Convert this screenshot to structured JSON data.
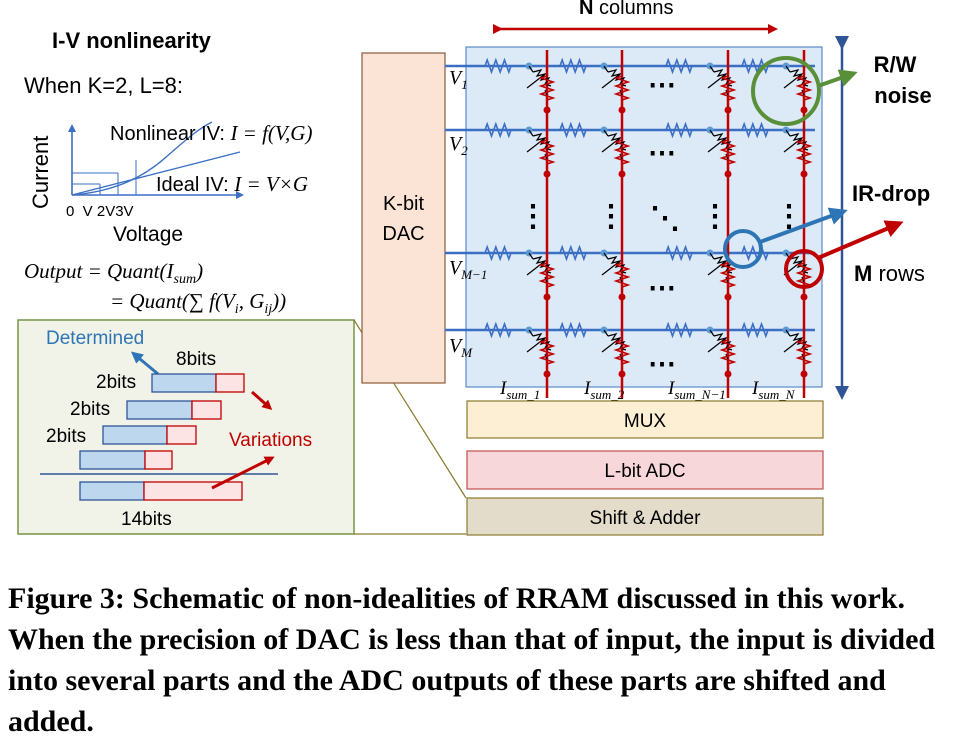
{
  "iv_panel": {
    "title": "I-V nonlinearity",
    "condition": "When K=2, L=8:",
    "nonlinear_label": "Nonlinear IV: ",
    "nonlinear_formula": "I = f(V,G)",
    "ideal_label": "Ideal IV: ",
    "ideal_formula": "I = V×G",
    "y_axis": "Current",
    "x_ticks": "0  V 2V3V",
    "x_axis": "Voltage"
  },
  "output_formula": {
    "line1": "Output = Quant(I",
    "line1_sub": "sum",
    "line2": "= Quant(∑ f(V",
    "line2_sub1": "i",
    "line2_mid": ", G",
    "line2_sub2": "ij",
    "line2_end": "))"
  },
  "inset": {
    "determined": "Determined",
    "bits8": "8bits",
    "bits2a": "2bits",
    "bits2b": "2bits",
    "bits2c": "2bits",
    "variations": "Variations",
    "bits14": "14bits"
  },
  "dac": {
    "line1": "K-bit",
    "line2": "DAC"
  },
  "crossbar": {
    "columns_label_bold": "N",
    "columns_label": " columns",
    "rows_label_bold": "M",
    "rows_label": " rows",
    "v_labels": [
      {
        "main": "V",
        "sub": "1"
      },
      {
        "main": "V",
        "sub": "2"
      },
      {
        "main": "V",
        "sub": "M−1"
      },
      {
        "main": "V",
        "sub": "M"
      }
    ],
    "i_labels": [
      {
        "main": "I",
        "sub": "sum_1"
      },
      {
        "main": "I",
        "sub": "sum_2"
      },
      {
        "main": "I",
        "sub": "sum_N−1"
      },
      {
        "main": "I",
        "sub": "sum_N"
      }
    ],
    "ellipsis_h": "⋯",
    "ellipsis_v": "⋮",
    "ellipsis_d": "⋱"
  },
  "annotations": {
    "rw_noise_line1": "R/W",
    "rw_noise_line2": "noise",
    "ir_drop": "IR-drop"
  },
  "blocks": {
    "mux": "MUX",
    "adc": "L-bit ADC",
    "shift": "Shift & Adder"
  },
  "caption": "Figure 3: Schematic of non-idealities of RRAM discussed in this work. When the precision of DAC is less than that of input, the input is divided into several parts and the ADC outputs of these parts are shifted and added.",
  "colors": {
    "row_line": "#3a6fc4",
    "col_line": "#c00000",
    "dac_fill": "#fbe4d5",
    "mux_fill": "#fcefd3",
    "adc_fill": "#f8d7da",
    "shift_fill": "#e4dccb",
    "inset_fill": "#f1f2e8",
    "inset_border": "#7e9a4f",
    "blue_bar": "#bdd7ee",
    "red_bar": "#fce4e4",
    "green": "#5a8f3a",
    "blue_text": "#2e75b6",
    "red_text": "#c00000"
  }
}
